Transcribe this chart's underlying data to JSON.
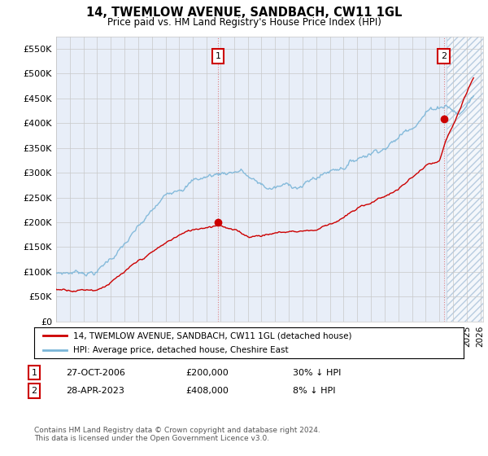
{
  "title": "14, TWEMLOW AVENUE, SANDBACH, CW11 1GL",
  "subtitle": "Price paid vs. HM Land Registry's House Price Index (HPI)",
  "yticks": [
    0,
    50000,
    100000,
    150000,
    200000,
    250000,
    300000,
    350000,
    400000,
    450000,
    500000,
    550000
  ],
  "ylim": [
    0,
    575000
  ],
  "xlim_start": 1995.0,
  "xlim_end": 2026.2,
  "hpi_color": "#7ab5d8",
  "price_color": "#cc0000",
  "annotation1_date": 2006.83,
  "annotation1_price": 200000,
  "annotation2_date": 2023.33,
  "annotation2_price": 408000,
  "legend_label1": "14, TWEMLOW AVENUE, SANDBACH, CW11 1GL (detached house)",
  "legend_label2": "HPI: Average price, detached house, Cheshire East",
  "table_row1": [
    "1",
    "27-OCT-2006",
    "£200,000",
    "30% ↓ HPI"
  ],
  "table_row2": [
    "2",
    "28-APR-2023",
    "£408,000",
    "8% ↓ HPI"
  ],
  "footer": "Contains HM Land Registry data © Crown copyright and database right 2024.\nThis data is licensed under the Open Government Licence v3.0.",
  "bg_color": "#e8eef8",
  "grid_color": "#c8c8c8",
  "hatch_start": 2023.5
}
